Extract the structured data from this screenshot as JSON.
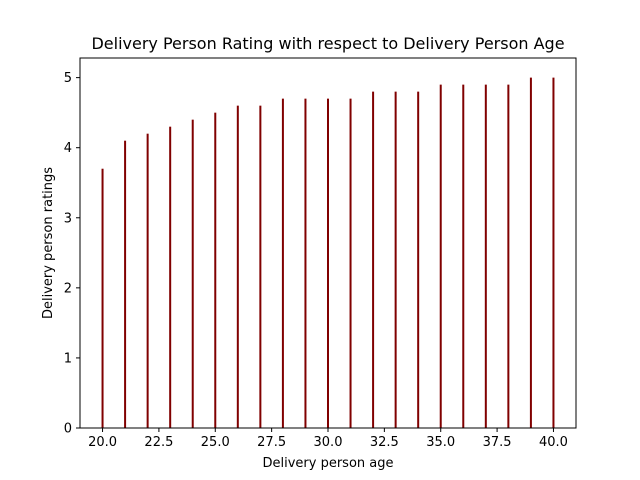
{
  "chart_data": {
    "type": "bar",
    "title": "Delivery Person Rating with respect to Delivery Person Age",
    "xlabel": "Delivery person age",
    "ylabel": "Delivery person ratings",
    "x": [
      20,
      21,
      22,
      23,
      24,
      25,
      26,
      27,
      28,
      29,
      30,
      31,
      32,
      33,
      34,
      35,
      36,
      37,
      38,
      39,
      40
    ],
    "values": [
      3.7,
      4.1,
      4.2,
      4.3,
      4.4,
      4.5,
      4.6,
      4.6,
      4.7,
      4.7,
      4.7,
      4.7,
      4.8,
      4.8,
      4.8,
      4.9,
      4.9,
      4.9,
      4.9,
      5.0,
      5.0
    ],
    "xlim": [
      19.0,
      41.0
    ],
    "ylim": [
      0,
      5.28
    ],
    "xticks": [
      "20.0",
      "22.5",
      "25.0",
      "27.5",
      "30.0",
      "32.5",
      "35.0",
      "37.5",
      "40.0"
    ],
    "yticks": [
      "0",
      "1",
      "2",
      "3",
      "4",
      "5"
    ],
    "bar_color": "#800000",
    "grid": false,
    "legend": "none"
  }
}
